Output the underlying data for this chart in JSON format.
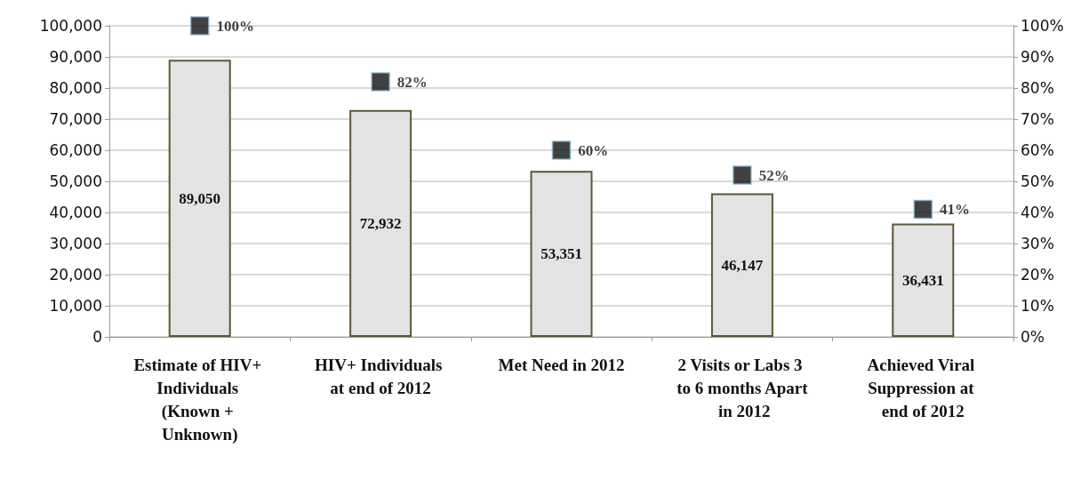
{
  "chart_data": {
    "type": "bar",
    "categories": [
      "Estimate of HIV+ Individuals (Known + Unknown)",
      "HIV+ Individuals at end of 2012",
      "Met Need in 2012",
      "2 Visits or Labs 3 to 6 months Apart in 2012",
      "Achieved Viral Suppression at end of 2012"
    ],
    "series": [
      {
        "color": "#e3e3e3",
        "values": [
          89050,
          72932,
          53351,
          46147,
          36431
        ],
        "value_labels": [
          "89,050",
          "72,932",
          "53,351",
          "46,147",
          "36,431"
        ]
      },
      {
        "type": "scatter",
        "axis": "y2",
        "color": "#111111",
        "marker": "square",
        "values": [
          100,
          82,
          60,
          52,
          41
        ],
        "value_labels": [
          "100%",
          "82%",
          "60%",
          "52%",
          "41%"
        ]
      }
    ],
    "ylim": [
      0,
      100000
    ],
    "yticks": [
      {
        "value": 0,
        "label": "0"
      },
      {
        "value": 10000,
        "label": "10,000"
      },
      {
        "value": 20000,
        "label": "20,000"
      },
      {
        "value": 30000,
        "label": "30,000"
      },
      {
        "value": 40000,
        "label": "40,000"
      },
      {
        "value": 50000,
        "label": "50,000"
      },
      {
        "value": 60000,
        "label": "60,000"
      },
      {
        "value": 70000,
        "label": "70,000"
      },
      {
        "value": 80000,
        "label": "80,000"
      },
      {
        "value": 90000,
        "label": "90,000"
      },
      {
        "value": 100000,
        "label": "100,000"
      }
    ],
    "y2lim": [
      0,
      100
    ],
    "y2ticks": [
      {
        "value": 0,
        "label": "0%"
      },
      {
        "value": 10,
        "label": "10%"
      },
      {
        "value": 20,
        "label": "20%"
      },
      {
        "value": 30,
        "label": "30%"
      },
      {
        "value": 40,
        "label": "40%"
      },
      {
        "value": 50,
        "label": "50%"
      },
      {
        "value": 60,
        "label": "60%"
      },
      {
        "value": 70,
        "label": "70%"
      },
      {
        "value": 80,
        "label": "80%"
      },
      {
        "value": 90,
        "label": "90%"
      },
      {
        "value": 100,
        "label": "100%"
      }
    ],
    "grid": "y"
  }
}
